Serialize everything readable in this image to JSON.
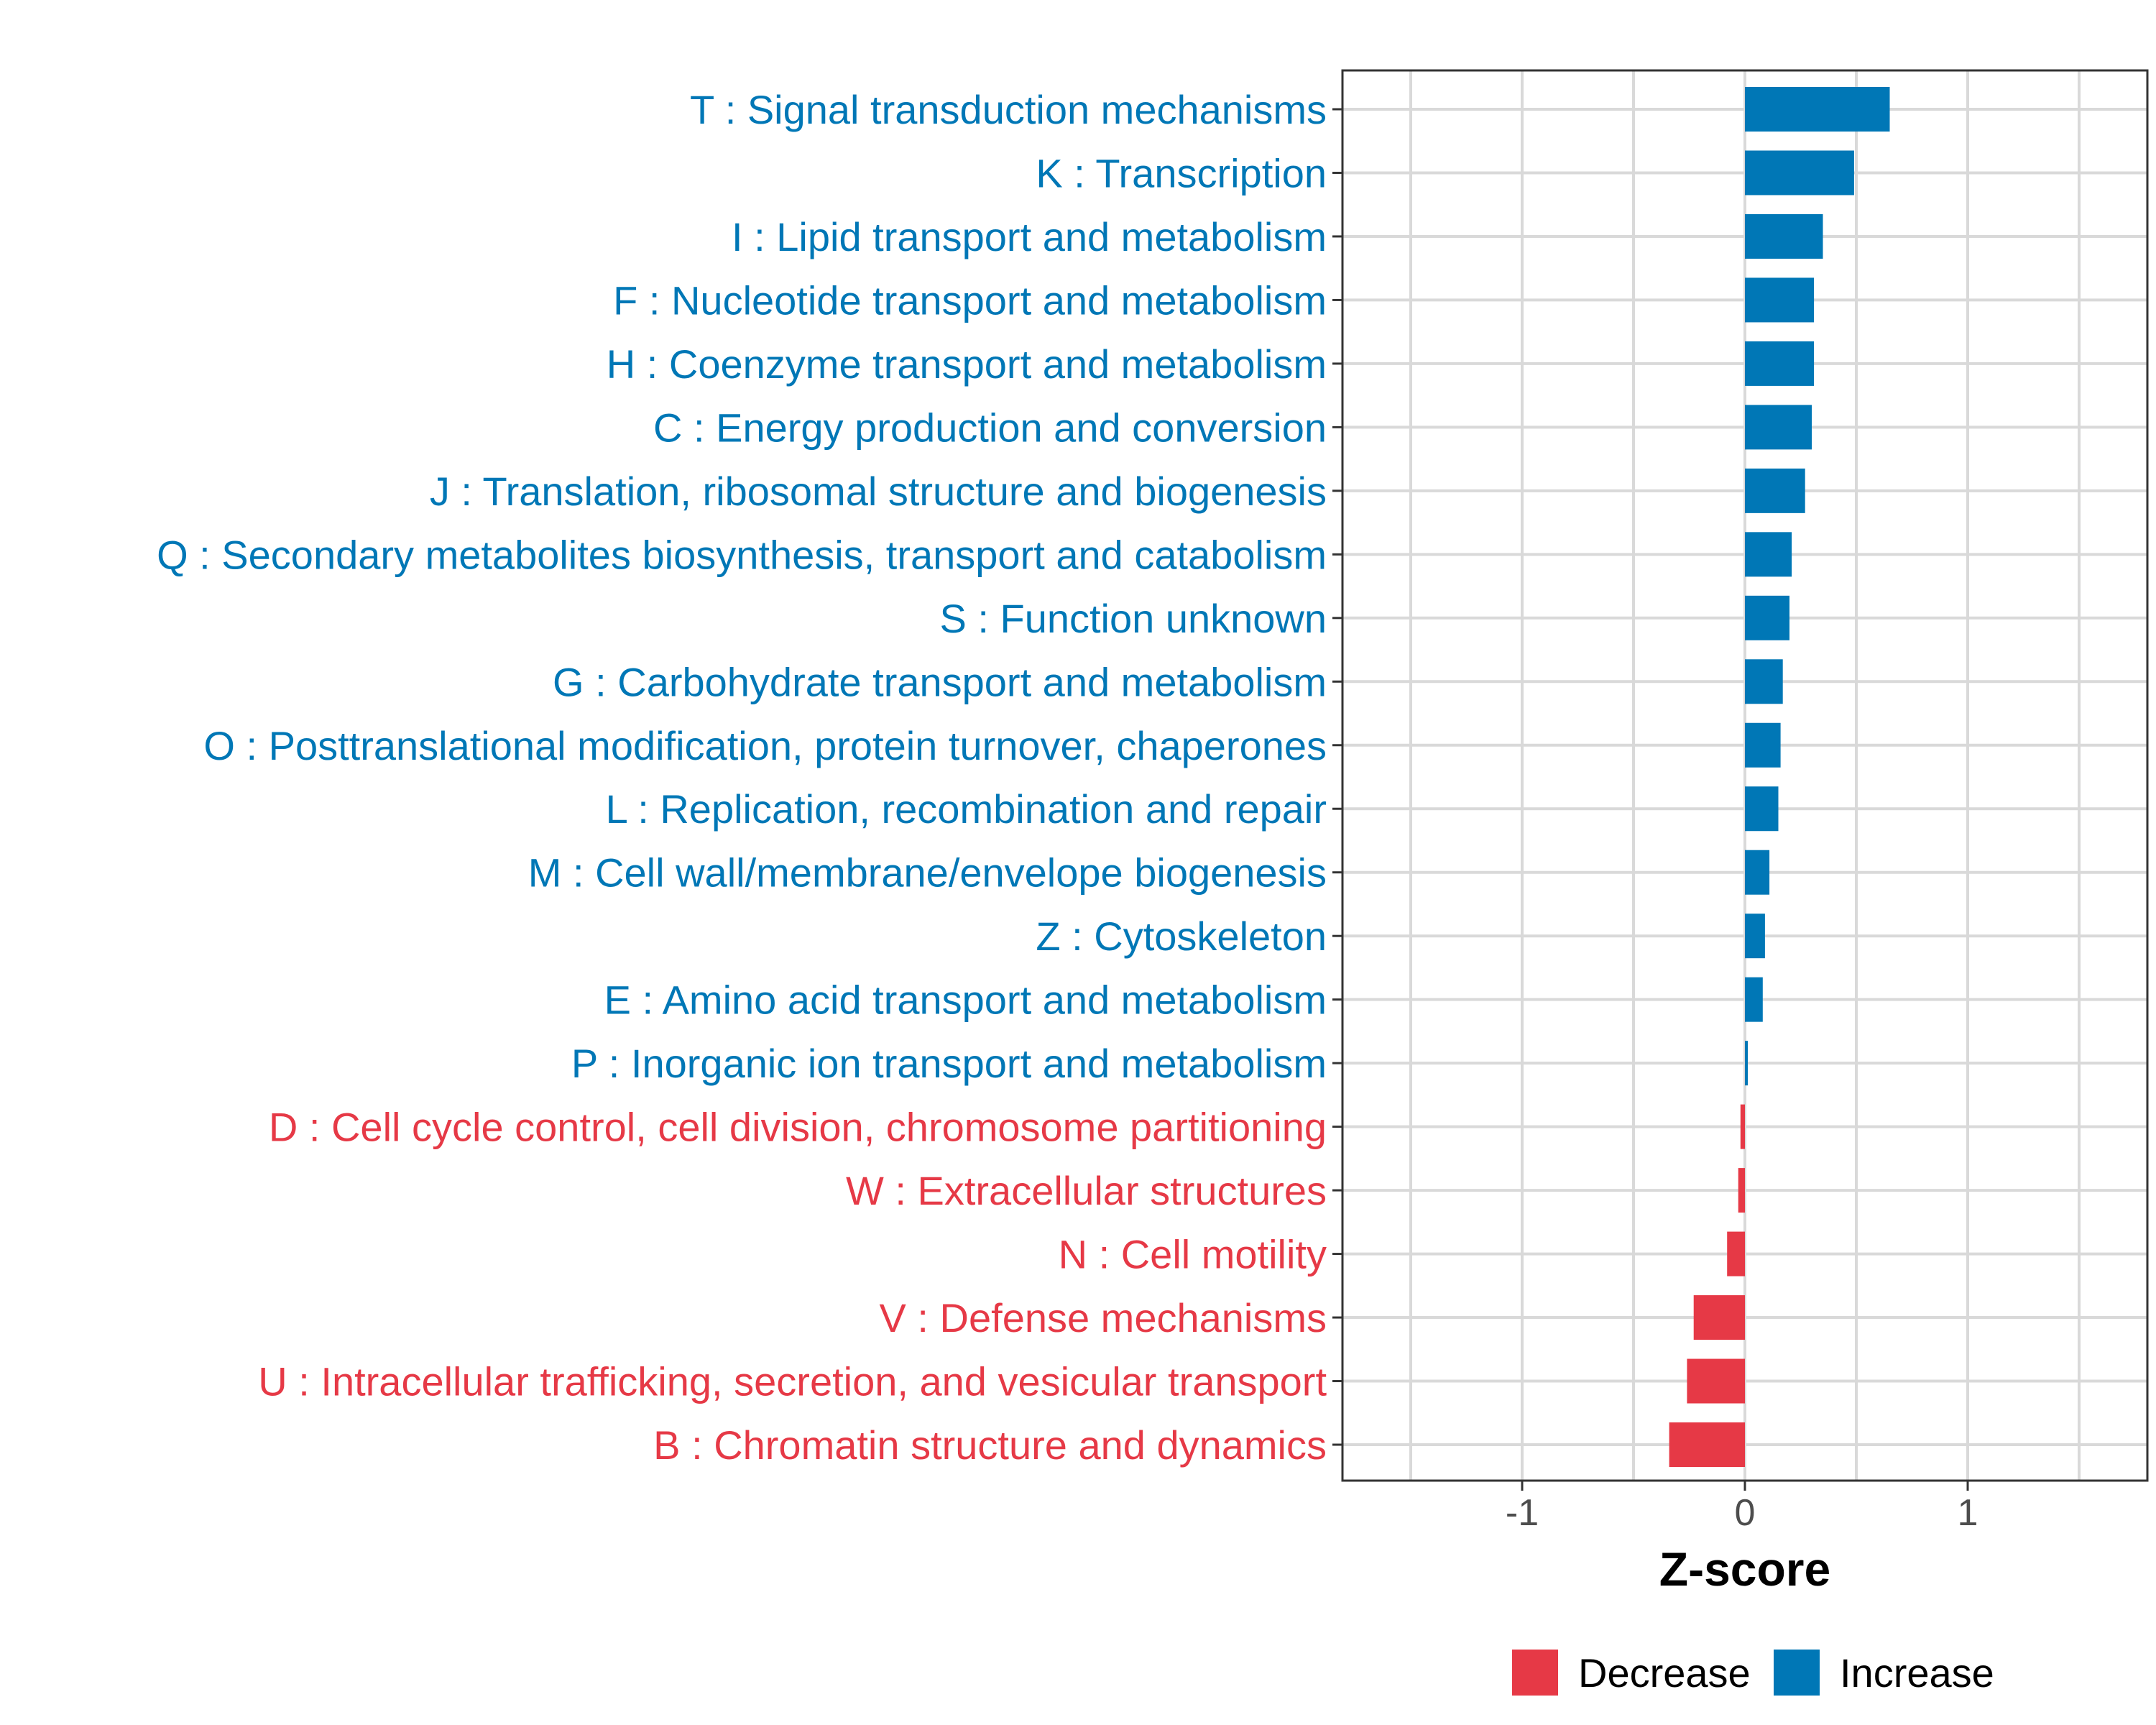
{
  "chart_data": {
    "type": "bar",
    "orientation": "horizontal",
    "title": "",
    "xlabel": "Z-score",
    "ylabel": "",
    "xlim": [
      -1.8,
      1.8
    ],
    "xticks": [
      -1,
      0,
      1
    ],
    "tick_labels": [
      "-1",
      "0",
      "1"
    ],
    "grid": true,
    "legend_position": "bottom",
    "colors": {
      "Decrease": "#e63946",
      "Increase": "#0077b6"
    },
    "legend": [
      {
        "name": "Decrease",
        "color": "#e63946"
      },
      {
        "name": "Increase",
        "color": "#0077b6"
      }
    ],
    "bars": [
      {
        "label": "T : Signal transduction mechanisms",
        "value": 0.65,
        "group": "Increase"
      },
      {
        "label": "K : Transcription",
        "value": 0.49,
        "group": "Increase"
      },
      {
        "label": "I : Lipid transport and metabolism",
        "value": 0.35,
        "group": "Increase"
      },
      {
        "label": "F : Nucleotide transport and metabolism",
        "value": 0.31,
        "group": "Increase"
      },
      {
        "label": "H : Coenzyme transport and metabolism",
        "value": 0.31,
        "group": "Increase"
      },
      {
        "label": "C : Energy production and conversion",
        "value": 0.3,
        "group": "Increase"
      },
      {
        "label": "J : Translation, ribosomal structure and biogenesis",
        "value": 0.27,
        "group": "Increase"
      },
      {
        "label": "Q : Secondary metabolites biosynthesis, transport and catabolism",
        "value": 0.21,
        "group": "Increase"
      },
      {
        "label": "S : Function unknown",
        "value": 0.2,
        "group": "Increase"
      },
      {
        "label": "G : Carbohydrate transport and metabolism",
        "value": 0.17,
        "group": "Increase"
      },
      {
        "label": "O : Posttranslational modification, protein turnover, chaperones",
        "value": 0.16,
        "group": "Increase"
      },
      {
        "label": "L : Replication, recombination and repair",
        "value": 0.15,
        "group": "Increase"
      },
      {
        "label": "M : Cell wall/membrane/envelope biogenesis",
        "value": 0.11,
        "group": "Increase"
      },
      {
        "label": "Z : Cytoskeleton",
        "value": 0.09,
        "group": "Increase"
      },
      {
        "label": "E : Amino acid transport and metabolism",
        "value": 0.08,
        "group": "Increase"
      },
      {
        "label": "P : Inorganic ion transport and metabolism",
        "value": 0.01,
        "group": "Increase"
      },
      {
        "label": "D : Cell cycle control, cell division, chromosome partitioning",
        "value": -0.02,
        "group": "Decrease"
      },
      {
        "label": "W : Extracellular structures",
        "value": -0.03,
        "group": "Decrease"
      },
      {
        "label": "N : Cell motility",
        "value": -0.08,
        "group": "Decrease"
      },
      {
        "label": "V : Defense mechanisms",
        "value": -0.23,
        "group": "Decrease"
      },
      {
        "label": "U : Intracellular trafficking, secretion, and vesicular transport",
        "value": -0.26,
        "group": "Decrease"
      },
      {
        "label": "B : Chromatin structure and dynamics",
        "value": -0.34,
        "group": "Decrease"
      }
    ]
  }
}
